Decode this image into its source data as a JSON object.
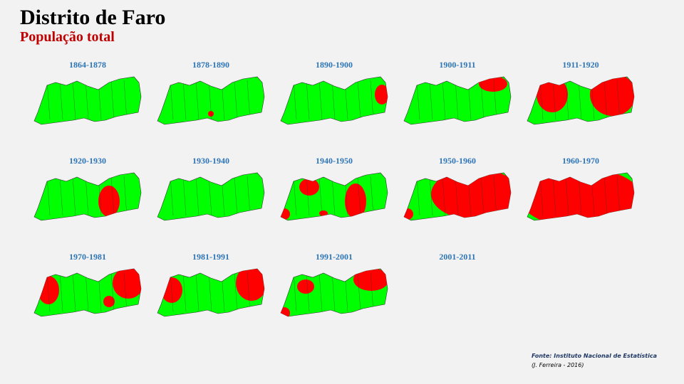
{
  "header": {
    "title": "Distrito de Faro",
    "subtitle": "População total"
  },
  "panels": [
    "1864-1878",
    "1878-1890",
    "1890-1900",
    "1900-1911",
    "1911-1920",
    "1920-1930",
    "1930-1940",
    "1940-1950",
    "1950-1960",
    "1960-1970",
    "1970-1981",
    "1981-1991",
    "1991-2001",
    "2001-2011"
  ],
  "source": {
    "line1": "Fonte: Instituto Nacional de Estatística",
    "line2": "(J. Ferreira - 2016)"
  }
}
